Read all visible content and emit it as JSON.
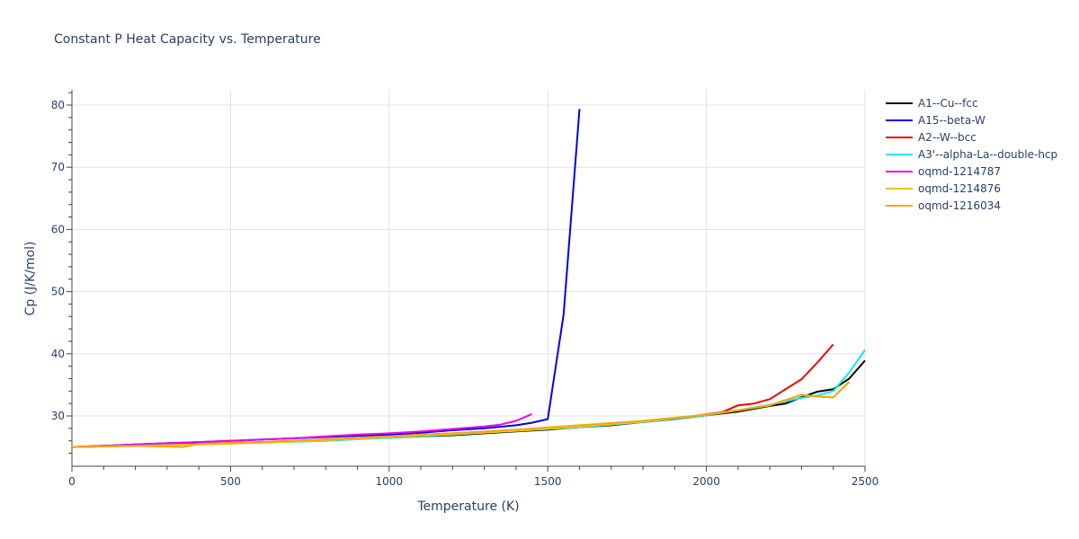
{
  "title": "Constant P Heat Capacity vs. Temperature",
  "chart_data": {
    "type": "line",
    "title": "Constant P Heat Capacity vs. Temperature",
    "xlabel": "Temperature (K)",
    "ylabel": "Cp (J/K/mol)",
    "xlim": [
      0,
      2500
    ],
    "ylim": [
      22.3,
      82.5
    ],
    "xticks": [
      0,
      500,
      1000,
      1500,
      2000,
      2500
    ],
    "yticks": [
      30,
      40,
      50,
      60,
      70,
      80
    ],
    "grid": true,
    "legend_position": "right",
    "series": [
      {
        "name": "A1--Cu--fcc",
        "color": "#000000",
        "x": [
          0,
          100,
          200,
          300,
          400,
          500,
          600,
          700,
          800,
          900,
          1000,
          1100,
          1200,
          1300,
          1400,
          1500,
          1600,
          1700,
          1800,
          1900,
          2000,
          2100,
          2200,
          2250,
          2300,
          2350,
          2400,
          2450,
          2500
        ],
        "y": [
          25.0,
          25.1,
          25.2,
          25.3,
          25.5,
          25.6,
          25.8,
          25.9,
          26.1,
          26.3,
          26.5,
          26.7,
          26.9,
          27.2,
          27.5,
          27.8,
          28.2,
          28.5,
          29.0,
          29.5,
          30.1,
          30.7,
          31.6,
          32.0,
          33.0,
          33.9,
          34.3,
          36.0,
          38.9
        ]
      },
      {
        "name": "A15--beta-W",
        "color": "#0000ee",
        "x": [
          0,
          100,
          200,
          300,
          400,
          500,
          600,
          700,
          800,
          900,
          1000,
          1100,
          1200,
          1300,
          1400,
          1450,
          1500,
          1550,
          1600
        ],
        "y": [
          25.0,
          25.2,
          25.4,
          25.6,
          25.8,
          26.0,
          26.2,
          26.4,
          26.6,
          26.8,
          27.0,
          27.3,
          27.7,
          28.0,
          28.5,
          28.9,
          29.5,
          46.3,
          79.4
        ]
      },
      {
        "name": "A2--W--bcc",
        "color": "#ee0000",
        "x": [
          0,
          200,
          400,
          600,
          800,
          1000,
          1200,
          1400,
          1600,
          1800,
          1950,
          2050,
          2100,
          2150,
          2200,
          2250,
          2300,
          2350,
          2400
        ],
        "y": [
          25.0,
          25.2,
          25.5,
          25.8,
          26.2,
          26.7,
          27.2,
          27.7,
          28.4,
          29.1,
          29.9,
          30.6,
          31.7,
          32.0,
          32.7,
          34.3,
          35.9,
          38.6,
          41.5
        ]
      },
      {
        "name": "A3'--alpha-La--double-hcp",
        "color": "#00eeee",
        "x": [
          0,
          200,
          400,
          600,
          800,
          1000,
          1200,
          1400,
          1600,
          1800,
          2000,
          2100,
          2200,
          2300,
          2350,
          2400,
          2450,
          2500
        ],
        "y": [
          25.0,
          25.2,
          25.4,
          25.7,
          26.0,
          26.5,
          27.0,
          27.6,
          28.2,
          29.0,
          30.1,
          30.9,
          31.8,
          32.9,
          33.3,
          34.0,
          37.0,
          40.6
        ]
      },
      {
        "name": "oqmd-1214787",
        "color": "#ee00ee",
        "x": [
          0,
          100,
          200,
          300,
          400,
          500,
          600,
          700,
          800,
          900,
          1000,
          1100,
          1200,
          1300,
          1350,
          1400,
          1450
        ],
        "y": [
          25.0,
          25.2,
          25.4,
          25.6,
          25.8,
          26.0,
          26.2,
          26.4,
          26.7,
          27.0,
          27.2,
          27.5,
          27.9,
          28.3,
          28.6,
          29.2,
          30.3
        ]
      },
      {
        "name": "oqmd-1214876",
        "color": "#f2c318",
        "x": [
          0,
          200,
          400,
          600,
          800,
          1000,
          1200,
          1400,
          1600,
          1800,
          2000,
          2100,
          2200,
          2300,
          2350,
          2400,
          2450
        ],
        "y": [
          25.0,
          25.2,
          25.4,
          25.7,
          26.1,
          26.6,
          27.1,
          27.6,
          28.3,
          29.1,
          30.2,
          30.9,
          31.7,
          33.4,
          33.1,
          33.0,
          35.4
        ]
      },
      {
        "name": "oqmd-1216034",
        "color": "#ffa500",
        "x": [
          0,
          200,
          350,
          400,
          600,
          800,
          1000,
          1200,
          1400,
          1600,
          1800,
          2000,
          2100,
          2200,
          2300,
          2350,
          2400,
          2450
        ],
        "y": [
          25.0,
          25.2,
          25.0,
          25.5,
          25.8,
          26.2,
          26.7,
          27.2,
          27.8,
          28.5,
          29.2,
          30.2,
          30.9,
          31.7,
          33.4,
          33.1,
          33.0,
          35.5
        ]
      }
    ]
  }
}
